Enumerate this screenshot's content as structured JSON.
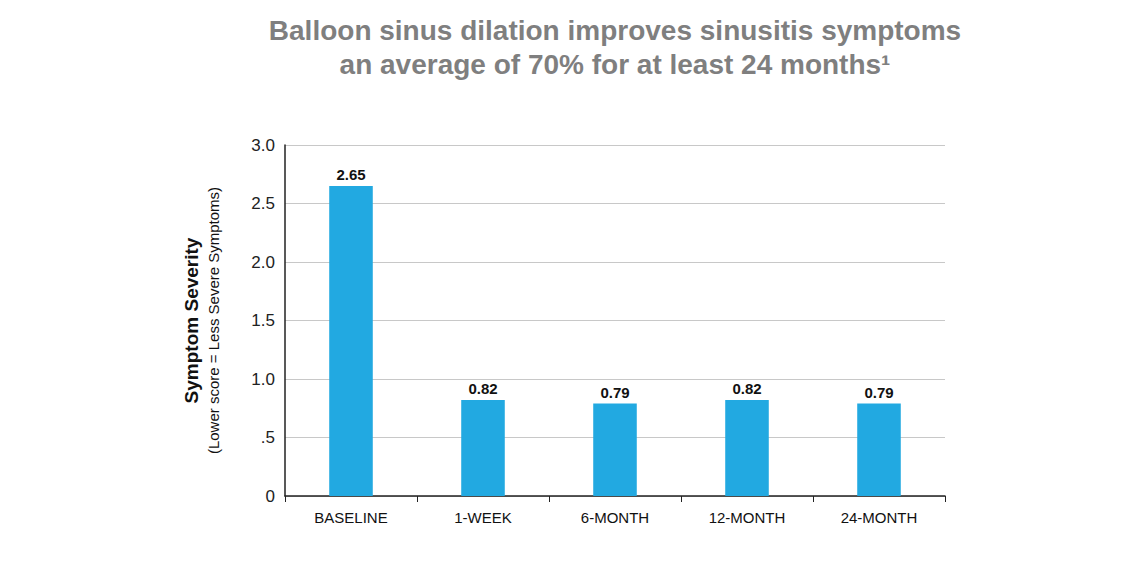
{
  "chart_data": {
    "type": "bar",
    "title": "Balloon sinus dilation improves sinusitis symptoms\nan average of 70% for at least 24 months¹",
    "y_label": "Symptom Severity",
    "y_label_note": "(Lower score = Less Severe Symptoms)",
    "categories": [
      "BASELINE",
      "1-WEEK",
      "6-MONTH",
      "12-MONTH",
      "24-MONTH"
    ],
    "values": [
      2.65,
      0.82,
      0.79,
      0.82,
      0.79
    ],
    "color": "#22a9e1",
    "ylim": [
      0,
      3
    ],
    "yticks": [
      0,
      {
        "value": 0.5,
        "label": ".5"
      },
      {
        "value": 1,
        "label": "1.0"
      },
      {
        "value": 1.5,
        "label": "1.5"
      },
      {
        "value": 2,
        "label": "2.0"
      },
      {
        "value": 2.5,
        "label": "2.5"
      },
      {
        "value": 3,
        "label": "3.0"
      }
    ],
    "grid": true,
    "data_labels": true
  }
}
